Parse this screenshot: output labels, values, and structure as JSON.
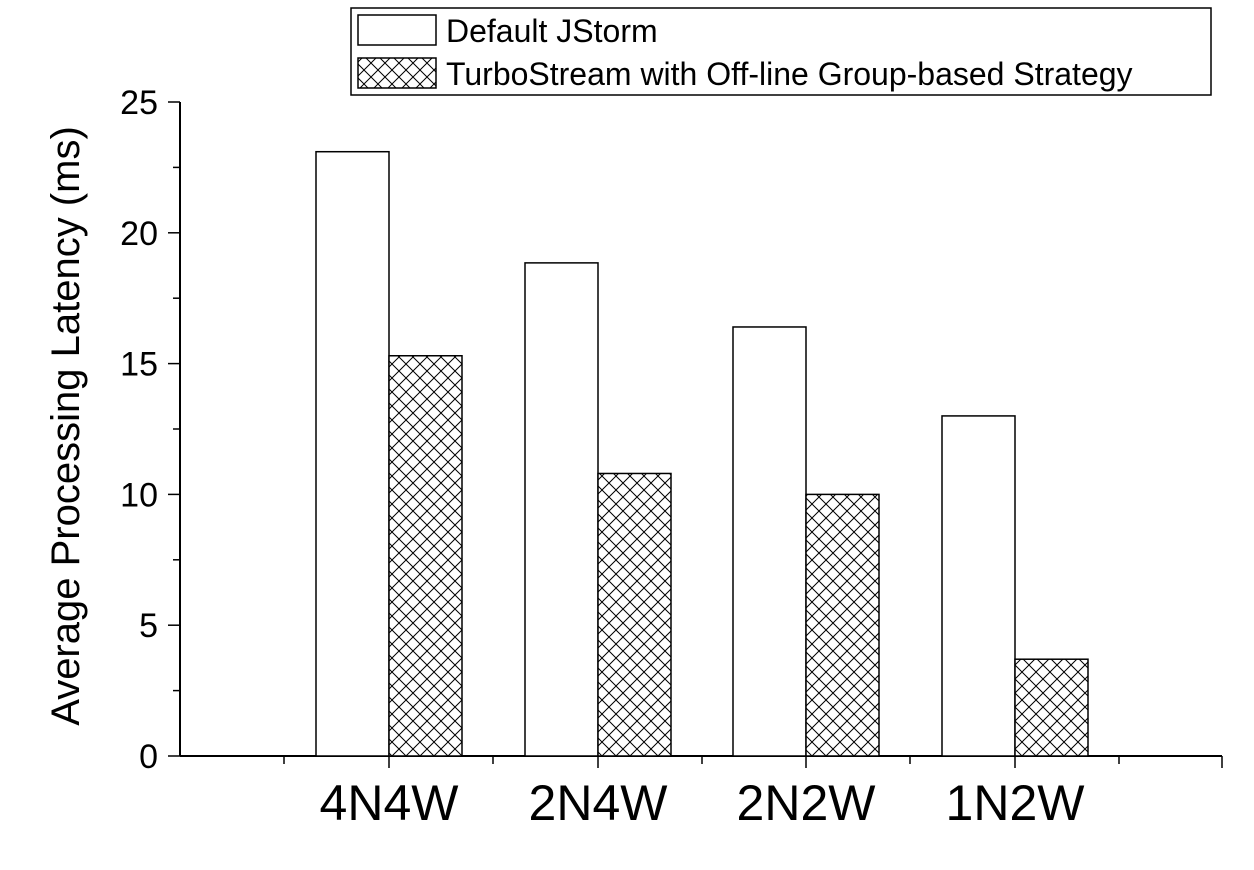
{
  "chart_data": {
    "type": "bar",
    "ylabel": "Average Processing Latency (ms)",
    "xlabel": "",
    "categories": [
      "4N4W",
      "2N4W",
      "2N2W",
      "1N2W"
    ],
    "ylim": [
      0,
      25
    ],
    "yticks": [
      "0",
      "5",
      "10",
      "15",
      "20",
      "25"
    ],
    "series": [
      {
        "name": "Default JStorm",
        "values": [
          23.1,
          18.85,
          16.4,
          13.0
        ],
        "fill": "white"
      },
      {
        "name": "TurboStream with Off-line Group-based Strategy",
        "values": [
          15.3,
          10.8,
          10.0,
          3.7
        ],
        "fill": "crosshatch"
      }
    ],
    "legend_position": "top-right",
    "grid": false
  }
}
